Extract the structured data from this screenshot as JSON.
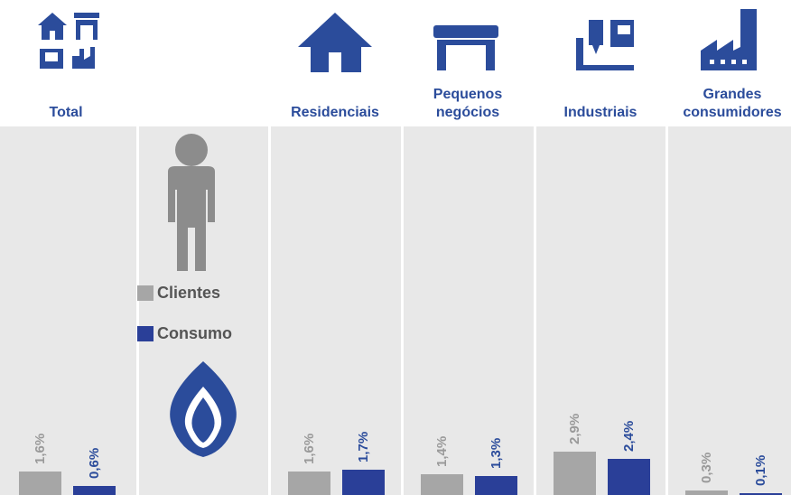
{
  "chart_data": {
    "type": "bar",
    "categories": [
      "Total",
      "Residenciais",
      "Pequenos negócios",
      "Industriais",
      "Grandes consumidores"
    ],
    "series": [
      {
        "name": "Clientes",
        "color": "#a6a6a6",
        "values": [
          1.6,
          1.6,
          1.4,
          2.9,
          0.3
        ],
        "value_labels": [
          "1,6%",
          "1,6%",
          "1,4%",
          "2,9%",
          "0,3%"
        ]
      },
      {
        "name": "Consumo",
        "color": "#2a3f98",
        "values": [
          0.6,
          1.7,
          1.3,
          2.4,
          0.1
        ],
        "value_labels": [
          "0,6%",
          "1,7%",
          "1,3%",
          "2,4%",
          "0,1%"
        ]
      }
    ]
  }
}
